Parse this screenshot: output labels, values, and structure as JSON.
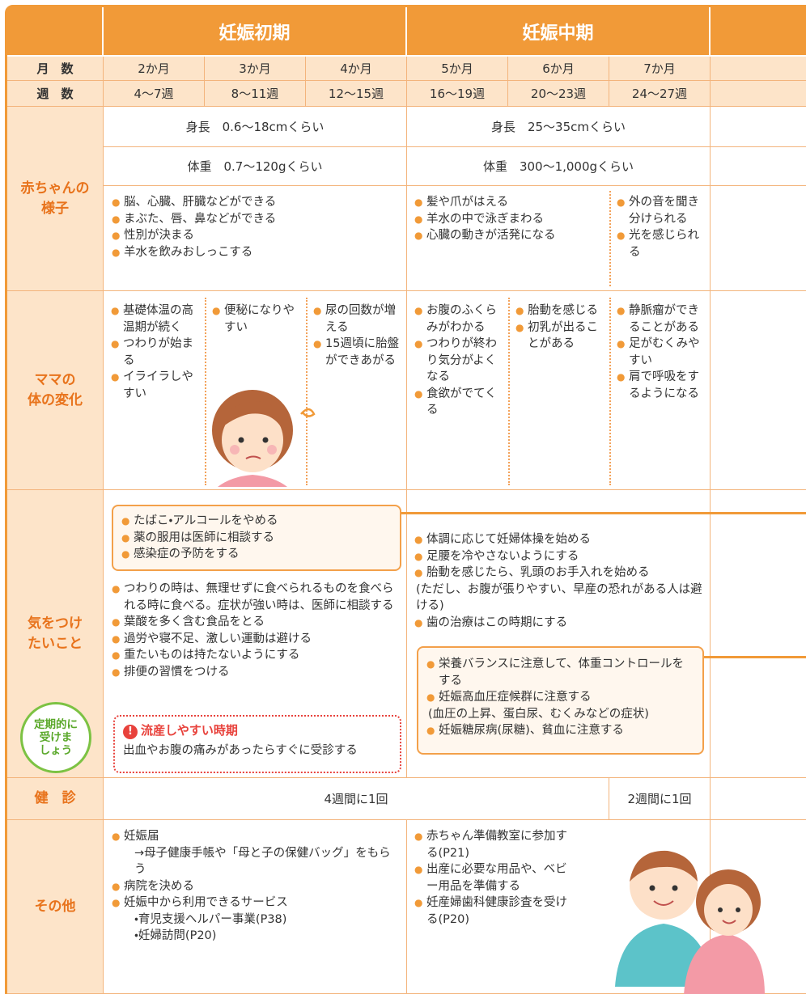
{
  "stages": [
    "妊娠初期",
    "妊娠中期"
  ],
  "months": {
    "label": "月　数",
    "values": [
      "2か月",
      "3か月",
      "4か月",
      "5か月",
      "6か月",
      "7か月"
    ]
  },
  "weeks": {
    "label": "週　数",
    "values": [
      "4～7週",
      "8～11週",
      "12～15週",
      "16～19週",
      "20～23週",
      "24～27週"
    ]
  },
  "baby": {
    "label": [
      "赤ちゃんの",
      "様子"
    ],
    "height": [
      "身長　0.6～18cmくらい",
      "身長　25～35cmくらい"
    ],
    "weight": [
      "体重　0.7～120gくらい",
      "体重　300～1,000gくらい"
    ],
    "early": [
      "脳、心臓、肝臓などができる",
      "まぶた、唇、鼻などができる",
      "性別が決まる",
      "羊水を飲みおしっこする"
    ],
    "mid": [
      "髪や爪がはえる",
      "羊水の中で泳ぎまわる",
      "心臓の動きが活発になる"
    ],
    "month7": [
      "外の音を聞き分けられる",
      "光を感じられる"
    ]
  },
  "mama": {
    "label": [
      "ママの",
      "体の変化"
    ],
    "columns": [
      [
        "基礎体温の高温期が続く",
        "つわりが始まる",
        "イライラしやすい"
      ],
      [
        "便秘になりやすい"
      ],
      [
        "尿の回数が増える",
        "15週頃に胎盤ができあがる"
      ],
      [
        "お腹のふくらみがわかる",
        "つわりが終わり気分がよくなる",
        "食欲がでてくる"
      ],
      [
        "胎動を感じる",
        "初乳が出ることがある"
      ],
      [
        "静脈瘤ができることがある",
        "足がむくみやすい",
        "肩で呼吸をするようになる"
      ]
    ]
  },
  "care": {
    "label": [
      "気をつけ",
      "たいこと"
    ],
    "early_box": [
      "たばこ・アルコールをやめる",
      "薬の服用は医師に相談する",
      "感染症の予防をする"
    ],
    "early_list": [
      "つわりの時は、無理せずに食べられるものを食べられる時に食べる。症状が強い時は、医師に相談する",
      "葉酸を多く含む食品をとる",
      "過労や寝不足、激しい運動は避ける",
      "重たいものは持たないようにする",
      "排便の習慣をつける"
    ],
    "warning": {
      "title": "流産しやすい時期",
      "text": "出血やお腹の痛みがあったらすぐに受診する"
    },
    "bubble": [
      "定期的に",
      "受けま",
      "しょう"
    ],
    "mid_list": [
      "体調に応じて妊婦体操を始める",
      "足腰を冷やさないようにする",
      "胎動を感じたら、乳頭のお手入れを始める"
    ],
    "mid_note": "(ただし、お腹が張りやすい、早産の恐れがある人は避ける)",
    "mid_list2": [
      "歯の治療はこの時期にする"
    ],
    "mid_box": [
      "栄養バランスに注意して、体重コントロールをする",
      "妊娠高血圧症候群に注意する"
    ],
    "mid_box_note": "(血圧の上昇、蛋白尿、むくみなどの症状)",
    "mid_box2": [
      "妊娠糖尿病(尿糖)、貧血に注意する"
    ]
  },
  "checkup": {
    "label": "健　診",
    "values": [
      "4週間に1回",
      "2週間に1回"
    ]
  },
  "other": {
    "label": "その他",
    "early": [
      {
        "text": "妊娠届",
        "sub": [
          "→母子健康手帳や「母と子の保健バッグ」をもらう"
        ]
      },
      {
        "text": "病院を決める",
        "sub": []
      },
      {
        "text": "妊娠中から利用できるサービス",
        "sub": [
          "・育児支援ヘルパー事業(P38)",
          "・妊婦訪問(P20)"
        ]
      }
    ],
    "mid": [
      "赤ちゃん準備教室に参加する(P21)",
      "出産に必要な用品や、ベビー用品を準備する",
      "妊産婦歯科健康診査を受ける(P20)"
    ]
  }
}
